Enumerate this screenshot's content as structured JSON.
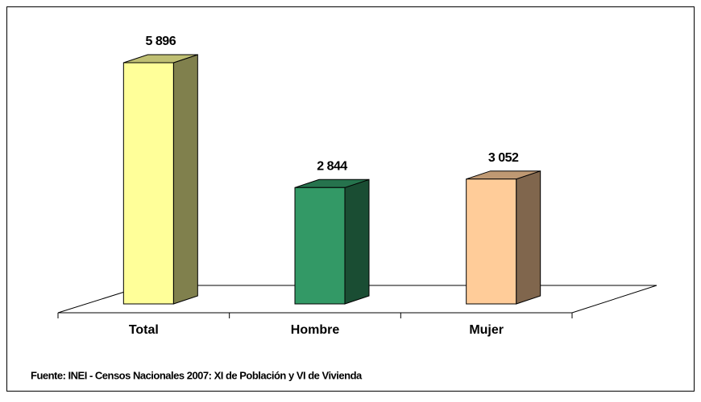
{
  "chart_data": {
    "type": "bar3d",
    "categories": [
      "Total",
      "Hombre",
      "Mujer"
    ],
    "values": [
      5896,
      2844,
      3052
    ],
    "value_labels": [
      "5 896",
      "2 844",
      "3 052"
    ],
    "colors": [
      "#ffff99",
      "#339966",
      "#ffcc99"
    ],
    "source": "Fuente: INEI - Censos Nacionales 2007: XI de Población y VI de Vivienda"
  }
}
